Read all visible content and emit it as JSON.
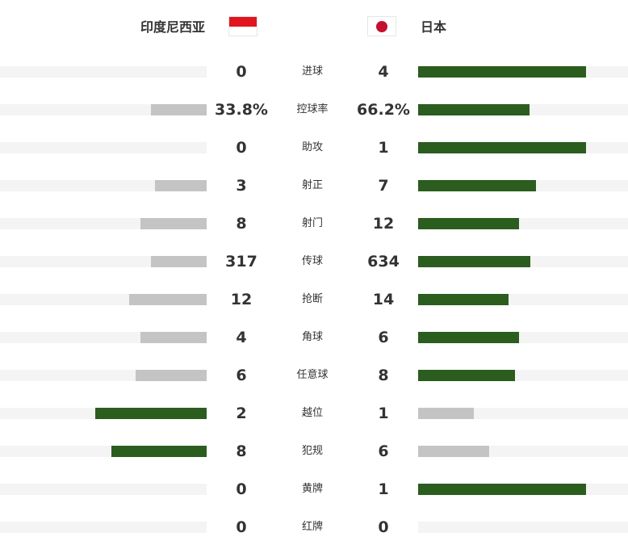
{
  "teams": {
    "home": {
      "name": "印度尼西亚",
      "flag": "indonesia-flag"
    },
    "away": {
      "name": "日本",
      "flag": "japan-flag"
    }
  },
  "colors": {
    "leader": "#2a5d1e",
    "trailer": "#c4c4c4",
    "track": "#f4f4f4",
    "indonesia_red": "#e0151e",
    "japan_red": "#c5102e"
  },
  "stats": [
    {
      "label": "进球",
      "home": "0",
      "away": "4",
      "home_share": 0.0,
      "away_share": 0.8,
      "leader": "away"
    },
    {
      "label": "控球率",
      "home": "33.8%",
      "away": "66.2%",
      "home_share": 0.27,
      "away_share": 0.53,
      "leader": "away"
    },
    {
      "label": "助攻",
      "home": "0",
      "away": "1",
      "home_share": 0.0,
      "away_share": 0.8,
      "leader": "away"
    },
    {
      "label": "射正",
      "home": "3",
      "away": "7",
      "home_share": 0.25,
      "away_share": 0.56,
      "leader": "away"
    },
    {
      "label": "射门",
      "home": "8",
      "away": "12",
      "home_share": 0.32,
      "away_share": 0.48,
      "leader": "away"
    },
    {
      "label": "传球",
      "home": "317",
      "away": "634",
      "home_share": 0.27,
      "away_share": 0.535,
      "leader": "away"
    },
    {
      "label": "抢断",
      "home": "12",
      "away": "14",
      "home_share": 0.375,
      "away_share": 0.43,
      "leader": "away"
    },
    {
      "label": "角球",
      "home": "4",
      "away": "6",
      "home_share": 0.32,
      "away_share": 0.48,
      "leader": "away"
    },
    {
      "label": "任意球",
      "home": "6",
      "away": "8",
      "home_share": 0.345,
      "away_share": 0.46,
      "leader": "away"
    },
    {
      "label": "越位",
      "home": "2",
      "away": "1",
      "home_share": 0.54,
      "away_share": 0.265,
      "leader": "home"
    },
    {
      "label": "犯规",
      "home": "8",
      "away": "6",
      "home_share": 0.46,
      "away_share": 0.34,
      "leader": "home"
    },
    {
      "label": "黄牌",
      "home": "0",
      "away": "1",
      "home_share": 0.0,
      "away_share": 0.8,
      "leader": "away"
    },
    {
      "label": "红牌",
      "home": "0",
      "away": "0",
      "home_share": 0.0,
      "away_share": 0.0,
      "leader": "none"
    }
  ]
}
